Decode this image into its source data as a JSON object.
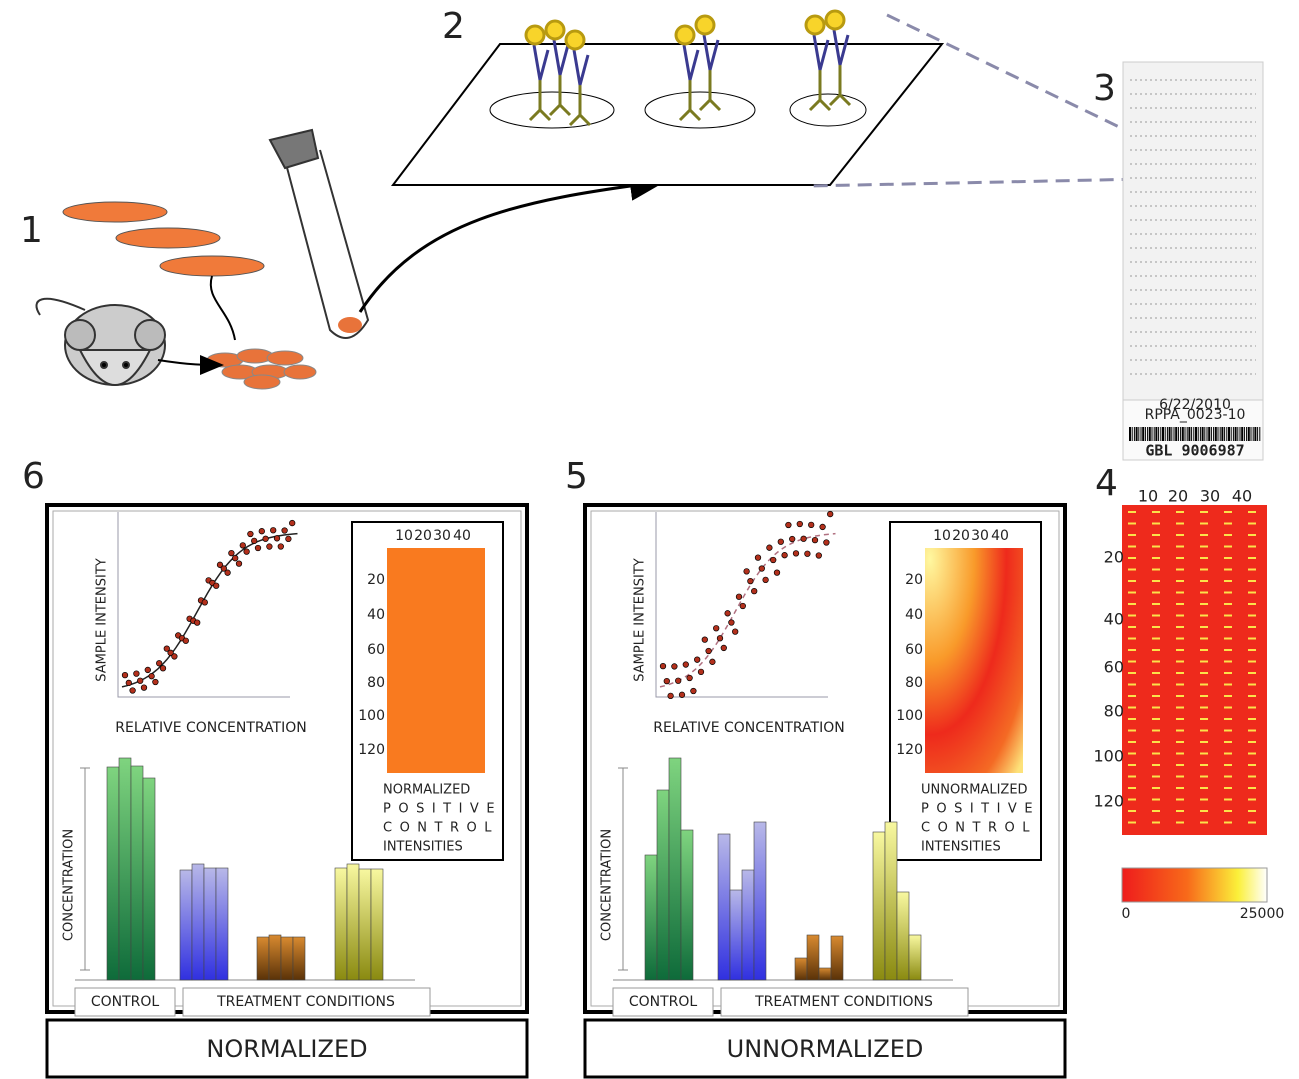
{
  "steps": {
    "one": "1",
    "two": "2",
    "three": "3",
    "four": "4",
    "five": "5",
    "six": "6"
  },
  "slide": {
    "date": "6/22/2010",
    "id": "RPPA_0023-10",
    "barcode": "GBL 9006987"
  },
  "heatmap": {
    "xticks": [
      "10",
      "20",
      "30",
      "40"
    ],
    "yticks": [
      "20",
      "40",
      "60",
      "80",
      "100",
      "120"
    ],
    "colorbar": [
      "0",
      "25000"
    ]
  },
  "panels": [
    {
      "y_label": "SAMPLE INTENSITY",
      "x_label": "RELATIVE CONCENTRATION",
      "inset_xticks": [
        "10",
        "20",
        "30",
        "40"
      ],
      "inset_yticks": [
        "20",
        "40",
        "60",
        "80",
        "100",
        "120"
      ],
      "inset_caption": [
        "NORMALIZED",
        "POSITIVE",
        "CONTROL",
        "INTENSITIES"
      ],
      "bar_y_label": "CONCENTRATION",
      "groups": [
        "CONTROL",
        "TREATMENT CONDITIONS"
      ],
      "footer": "NORMALIZED"
    },
    {
      "y_label": "SAMPLE INTENSITY",
      "x_label": "RELATIVE CONCENTRATION",
      "inset_xticks": [
        "10",
        "20",
        "30",
        "40"
      ],
      "inset_yticks": [
        "20",
        "40",
        "60",
        "80",
        "100",
        "120"
      ],
      "inset_caption": [
        "UNNORMALIZED",
        "POSITIVE",
        "CONTROL",
        "INTENSITIES"
      ],
      "bar_y_label": "CONCENTRATION",
      "groups": [
        "CONTROL",
        "TREATMENT CONDITIONS"
      ],
      "footer": "UNNORMALIZED"
    }
  ]
}
